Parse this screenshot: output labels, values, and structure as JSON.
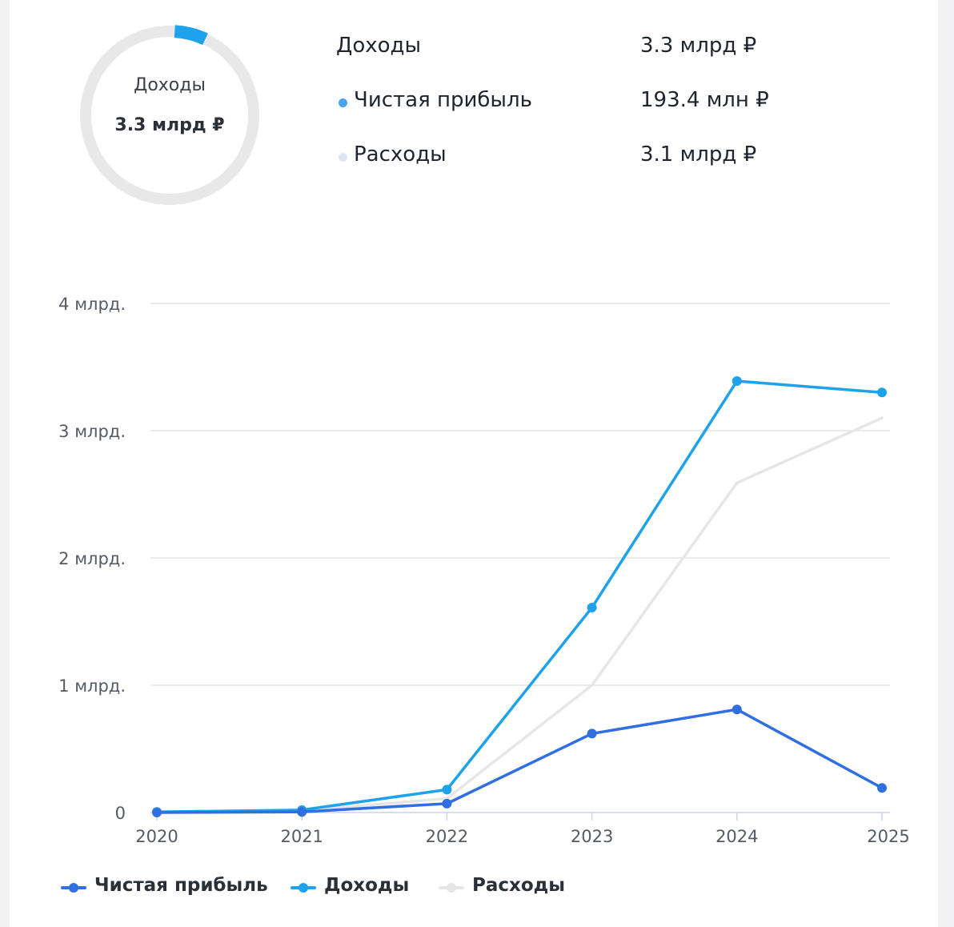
{
  "summary": {
    "donut_label": "Доходы",
    "donut_value": "3.3 млрд ₽",
    "donut_fraction": 0.06,
    "rows": [
      {
        "label": "Доходы",
        "value": "3.3 млрд ₽",
        "marker": null
      },
      {
        "label": "Чистая прибыль",
        "value": "193.4 млн ₽",
        "marker": "#4aa3f0"
      },
      {
        "label": "Расходы",
        "value": "3.1 млрд ₽",
        "marker": "#dde6f0"
      }
    ]
  },
  "colors": {
    "net_profit": "#2f6fe0",
    "revenue": "#1ea2eb",
    "expenses": "#e6e6e6",
    "grid": "#e3e3e6",
    "donut_track": "#e8e8e8",
    "donut_arc": "#1ea2eb"
  },
  "chart_data": {
    "type": "line",
    "x": [
      "2020",
      "2021",
      "2022",
      "2023",
      "2024",
      "2025"
    ],
    "ylim": [
      0,
      4000000000
    ],
    "yticks": [
      {
        "value": 0,
        "label": "0"
      },
      {
        "value": 1000000000,
        "label": "1 млрд."
      },
      {
        "value": 2000000000,
        "label": "2 млрд."
      },
      {
        "value": 3000000000,
        "label": "3 млрд."
      },
      {
        "value": 4000000000,
        "label": "4 млрд."
      }
    ],
    "grid": true,
    "legend_position": "bottom-left",
    "series": [
      {
        "name": "Чистая прибыль",
        "color_key": "net_profit",
        "values": [
          0,
          5000000,
          70000000,
          620000000,
          810000000,
          193400000
        ],
        "markers": [
          true,
          true,
          true,
          true,
          true,
          true
        ]
      },
      {
        "name": "Доходы",
        "color_key": "revenue",
        "values": [
          5000000,
          20000000,
          180000000,
          1610000000,
          3390000000,
          3300000000
        ],
        "markers": [
          true,
          true,
          true,
          true,
          true,
          true
        ]
      },
      {
        "name": "Расходы",
        "color_key": "expenses",
        "values": [
          5000000,
          15000000,
          110000000,
          1000000000,
          2590000000,
          3100000000
        ],
        "markers": [
          true,
          true,
          false,
          false,
          false,
          false
        ]
      }
    ]
  }
}
